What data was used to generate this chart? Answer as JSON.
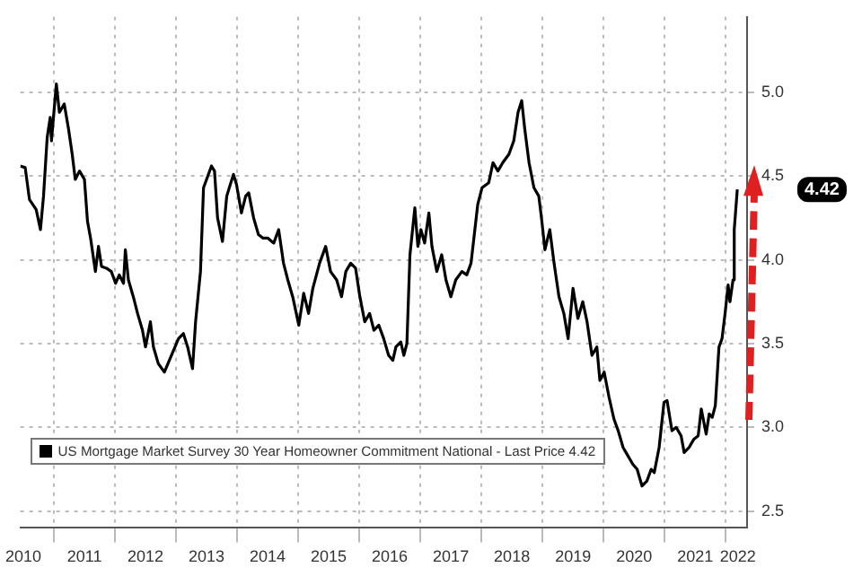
{
  "chart_data": {
    "type": "line",
    "x": [
      2010.45,
      2010.53,
      2010.6,
      2010.71,
      2010.78,
      2010.83,
      2010.89,
      2010.94,
      2010.96,
      2011.04,
      2011.09,
      2011.17,
      2011.24,
      2011.3,
      2011.35,
      2011.42,
      2011.5,
      2011.55,
      2011.6,
      2011.68,
      2011.73,
      2011.78,
      2011.86,
      2011.94,
      2012.01,
      2012.07,
      2012.14,
      2012.17,
      2012.22,
      2012.3,
      2012.37,
      2012.45,
      2012.5,
      2012.58,
      2012.63,
      2012.71,
      2012.81,
      2012.89,
      2012.96,
      2013.04,
      2013.12,
      2013.19,
      2013.27,
      2013.32,
      2013.4,
      2013.45,
      2013.5,
      2013.58,
      2013.63,
      2013.68,
      2013.76,
      2013.83,
      2013.94,
      2013.99,
      2014.07,
      2014.14,
      2014.19,
      2014.27,
      2014.35,
      2014.42,
      2014.5,
      2014.6,
      2014.68,
      2014.76,
      2014.83,
      2014.91,
      2015.01,
      2015.09,
      2015.17,
      2015.24,
      2015.35,
      2015.45,
      2015.53,
      2015.63,
      2015.71,
      2015.78,
      2015.86,
      2015.94,
      2016.01,
      2016.09,
      2016.17,
      2016.24,
      2016.32,
      2016.4,
      2016.48,
      2016.55,
      2016.6,
      2016.68,
      2016.73,
      2016.78,
      2016.83,
      2016.91,
      2016.96,
      2017.01,
      2017.07,
      2017.14,
      2017.19,
      2017.27,
      2017.35,
      2017.42,
      2017.5,
      2017.58,
      2017.68,
      2017.76,
      2017.83,
      2017.94,
      2018.01,
      2018.12,
      2018.19,
      2018.27,
      2018.35,
      2018.45,
      2018.53,
      2018.6,
      2018.66,
      2018.71,
      2018.78,
      2018.86,
      2018.94,
      2018.99,
      2019.04,
      2019.12,
      2019.19,
      2019.27,
      2019.35,
      2019.42,
      2019.5,
      2019.58,
      2019.66,
      2019.73,
      2019.81,
      2019.89,
      2019.94,
      2020.01,
      2020.09,
      2020.17,
      2020.24,
      2020.32,
      2020.4,
      2020.48,
      2020.55,
      2020.63,
      2020.71,
      2020.78,
      2020.83,
      2020.91,
      2020.99,
      2021.04,
      2021.12,
      2021.19,
      2021.27,
      2021.32,
      2021.4,
      2021.48,
      2021.55,
      2021.6,
      2021.68,
      2021.73,
      2021.78,
      2021.83,
      2021.89,
      2021.94,
      2021.99,
      2022.04,
      2022.07,
      2022.12,
      2022.14,
      2022.19
    ],
    "series": [
      {
        "name": "US Mortgage Market Survey 30 Year Homeowner Commitment National - Last Price 4.42",
        "color": "#000000",
        "values": [
          4.56,
          4.55,
          4.36,
          4.3,
          4.18,
          4.38,
          4.73,
          4.85,
          4.71,
          5.05,
          4.88,
          4.93,
          4.78,
          4.63,
          4.48,
          4.53,
          4.48,
          4.23,
          4.13,
          3.93,
          4.08,
          3.96,
          3.95,
          3.93,
          3.86,
          3.91,
          3.86,
          4.06,
          3.88,
          3.78,
          3.68,
          3.58,
          3.48,
          3.63,
          3.48,
          3.38,
          3.33,
          3.4,
          3.46,
          3.53,
          3.56,
          3.48,
          3.35,
          3.63,
          3.93,
          4.43,
          4.48,
          4.56,
          4.53,
          4.25,
          4.11,
          4.38,
          4.51,
          4.45,
          4.28,
          4.38,
          4.4,
          4.25,
          4.15,
          4.13,
          4.13,
          4.1,
          4.18,
          3.98,
          3.88,
          3.78,
          3.61,
          3.8,
          3.68,
          3.83,
          3.98,
          4.08,
          3.93,
          3.88,
          3.78,
          3.93,
          3.98,
          3.95,
          3.78,
          3.63,
          3.68,
          3.58,
          3.61,
          3.53,
          3.43,
          3.4,
          3.48,
          3.51,
          3.43,
          3.5,
          4.03,
          4.31,
          4.08,
          4.18,
          4.1,
          4.28,
          4.08,
          3.93,
          4.03,
          3.88,
          3.78,
          3.88,
          3.93,
          3.91,
          3.98,
          4.33,
          4.43,
          4.46,
          4.58,
          4.53,
          4.58,
          4.63,
          4.71,
          4.88,
          4.95,
          4.78,
          4.58,
          4.43,
          4.38,
          4.23,
          4.06,
          4.18,
          3.98,
          3.78,
          3.68,
          3.53,
          3.83,
          3.65,
          3.75,
          3.63,
          3.43,
          3.48,
          3.28,
          3.33,
          3.18,
          3.05,
          2.98,
          2.88,
          2.83,
          2.78,
          2.75,
          2.65,
          2.68,
          2.75,
          2.73,
          2.88,
          3.15,
          3.16,
          2.98,
          3.0,
          2.95,
          2.85,
          2.88,
          2.93,
          2.95,
          3.11,
          2.96,
          3.08,
          3.06,
          3.13,
          3.48,
          3.53,
          3.68,
          3.85,
          3.75,
          3.88,
          4.18,
          4.42
        ]
      }
    ],
    "xlim": [
      2010.45,
      2022.35
    ],
    "xticks": [
      {
        "value": 2010.5,
        "label": "2010"
      },
      {
        "value": 2011,
        "label": null
      },
      {
        "value": 2011.5,
        "label": "2011"
      },
      {
        "value": 2012,
        "label": null
      },
      {
        "value": 2012.5,
        "label": "2012"
      },
      {
        "value": 2013,
        "label": null
      },
      {
        "value": 2013.5,
        "label": "2013"
      },
      {
        "value": 2014,
        "label": null
      },
      {
        "value": 2014.5,
        "label": "2014"
      },
      {
        "value": 2015,
        "label": null
      },
      {
        "value": 2015.5,
        "label": "2015"
      },
      {
        "value": 2016,
        "label": null
      },
      {
        "value": 2016.5,
        "label": "2016"
      },
      {
        "value": 2017,
        "label": null
      },
      {
        "value": 2017.5,
        "label": "2017"
      },
      {
        "value": 2018,
        "label": null
      },
      {
        "value": 2018.5,
        "label": "2018"
      },
      {
        "value": 2019,
        "label": null
      },
      {
        "value": 2019.5,
        "label": "2019"
      },
      {
        "value": 2020,
        "label": null
      },
      {
        "value": 2020.5,
        "label": "2020"
      },
      {
        "value": 2021,
        "label": null
      },
      {
        "value": 2021.5,
        "label": "2021"
      },
      {
        "value": 2022,
        "label": null
      },
      {
        "value": 2022.2,
        "label": "2022"
      }
    ],
    "ylim": [
      2.4,
      5.45
    ],
    "yticks": [
      {
        "value": 2.5,
        "label": "2.5"
      },
      {
        "value": 3,
        "label": "3.0"
      },
      {
        "value": 3.5,
        "label": "3.5"
      },
      {
        "value": 4,
        "label": "4.0"
      },
      {
        "value": 4.5,
        "label": "4.5"
      },
      {
        "value": 5,
        "label": "5.0"
      }
    ],
    "annotations": [
      "4.42"
    ],
    "grid": true,
    "legend": "bottom left"
  }
}
